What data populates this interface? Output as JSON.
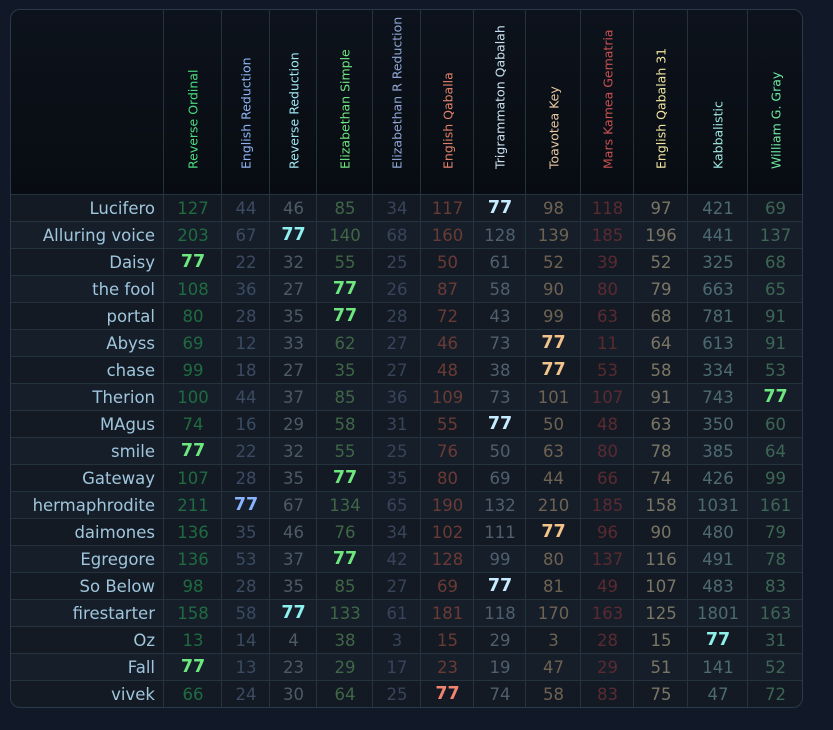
{
  "columns": [
    {
      "label": "Reverse Ordinal",
      "header_color": "#4ade80",
      "dim_color": "#1f6b3f",
      "hit_color": "#6ee77f"
    },
    {
      "label": "English Reduction",
      "header_color": "#8fb4f2",
      "dim_color": "#3b4b62",
      "hit_color": "#8ab4ff"
    },
    {
      "label": "Reverse Reduction",
      "header_color": "#9fe8f2",
      "dim_color": "#4d5b66",
      "hit_color": "#8ef0ef"
    },
    {
      "label": "Elizabethan Simple",
      "header_color": "#6ee77f",
      "dim_color": "#3f6646",
      "hit_color": "#6ee77f"
    },
    {
      "label": "Elizabethan R Reduction",
      "header_color": "#8fa7d6",
      "dim_color": "#38445a",
      "hit_color": "#8fa7d6"
    },
    {
      "label": "English Qaballa",
      "header_color": "#e0806a",
      "dim_color": "#6a3a34",
      "hit_color": "#f0846e"
    },
    {
      "label": "Trigrammaton Qabalah",
      "header_color": "#c8e0f0",
      "dim_color": "#4f5f6e",
      "hit_color": "#c8ecff"
    },
    {
      "label": "Toavotea Key",
      "header_color": "#e8c8a0",
      "dim_color": "#6e6252",
      "hit_color": "#f2c48c"
    },
    {
      "label": "Mars Kamea Gematria",
      "header_color": "#c85050",
      "dim_color": "#5a2a30",
      "hit_color": "#e05a5a"
    },
    {
      "label": "English Qabalah 31",
      "header_color": "#f0e6a0",
      "dim_color": "#7a7564",
      "hit_color": "#f0e6a0"
    },
    {
      "label": "Kabbalistic",
      "header_color": "#9ee8e0",
      "dim_color": "#4d6a70",
      "hit_color": "#8ef0e6"
    },
    {
      "label": "William G. Gray",
      "header_color": "#6ee7a0",
      "dim_color": "#3d6655",
      "hit_color": "#6ee77f"
    }
  ],
  "rows": [
    {
      "name": "Lucifero",
      "values": [
        "127",
        "44",
        "46",
        "85",
        "34",
        "117",
        "77",
        "98",
        "118",
        "97",
        "421",
        "69"
      ]
    },
    {
      "name": "Alluring voice",
      "values": [
        "203",
        "67",
        "77",
        "140",
        "68",
        "160",
        "128",
        "139",
        "185",
        "196",
        "441",
        "137"
      ]
    },
    {
      "name": "Daisy",
      "values": [
        "77",
        "22",
        "32",
        "55",
        "25",
        "50",
        "61",
        "52",
        "39",
        "52",
        "325",
        "68"
      ]
    },
    {
      "name": "the fool",
      "values": [
        "108",
        "36",
        "27",
        "77",
        "26",
        "87",
        "58",
        "90",
        "80",
        "79",
        "663",
        "65"
      ]
    },
    {
      "name": "portal",
      "values": [
        "80",
        "28",
        "35",
        "77",
        "28",
        "72",
        "43",
        "99",
        "63",
        "68",
        "781",
        "91"
      ]
    },
    {
      "name": "Abyss",
      "values": [
        "69",
        "12",
        "33",
        "62",
        "27",
        "46",
        "73",
        "77",
        "11",
        "64",
        "613",
        "91"
      ]
    },
    {
      "name": "chase",
      "values": [
        "99",
        "18",
        "27",
        "35",
        "27",
        "48",
        "38",
        "77",
        "53",
        "58",
        "334",
        "53"
      ]
    },
    {
      "name": "Therion",
      "values": [
        "100",
        "44",
        "37",
        "85",
        "36",
        "109",
        "73",
        "101",
        "107",
        "91",
        "743",
        "77"
      ]
    },
    {
      "name": "MAgus",
      "values": [
        "74",
        "16",
        "29",
        "58",
        "31",
        "55",
        "77",
        "50",
        "48",
        "63",
        "350",
        "60"
      ]
    },
    {
      "name": "smile",
      "values": [
        "77",
        "22",
        "32",
        "55",
        "25",
        "76",
        "50",
        "63",
        "80",
        "78",
        "385",
        "64"
      ]
    },
    {
      "name": "Gateway",
      "values": [
        "107",
        "28",
        "35",
        "77",
        "35",
        "80",
        "69",
        "44",
        "66",
        "74",
        "426",
        "99"
      ]
    },
    {
      "name": "hermaphrodite",
      "values": [
        "211",
        "77",
        "67",
        "134",
        "65",
        "190",
        "132",
        "210",
        "185",
        "158",
        "1031",
        "161"
      ]
    },
    {
      "name": "daimones",
      "values": [
        "136",
        "35",
        "46",
        "76",
        "34",
        "102",
        "111",
        "77",
        "96",
        "90",
        "480",
        "79"
      ]
    },
    {
      "name": "Egregore",
      "values": [
        "136",
        "53",
        "37",
        "77",
        "42",
        "128",
        "99",
        "80",
        "137",
        "116",
        "491",
        "78"
      ]
    },
    {
      "name": "So Below",
      "values": [
        "98",
        "28",
        "35",
        "85",
        "27",
        "69",
        "77",
        "81",
        "49",
        "107",
        "483",
        "83"
      ]
    },
    {
      "name": "firestarter",
      "values": [
        "158",
        "58",
        "77",
        "133",
        "61",
        "181",
        "118",
        "170",
        "163",
        "125",
        "1801",
        "163"
      ]
    },
    {
      "name": "Oz",
      "values": [
        "13",
        "14",
        "4",
        "38",
        "3",
        "15",
        "29",
        "3",
        "28",
        "15",
        "77",
        "31"
      ]
    },
    {
      "name": "Fall",
      "values": [
        "77",
        "13",
        "23",
        "29",
        "17",
        "23",
        "19",
        "47",
        "29",
        "51",
        "141",
        "52"
      ]
    },
    {
      "name": "vivek",
      "values": [
        "66",
        "24",
        "30",
        "64",
        "25",
        "77",
        "74",
        "58",
        "83",
        "75",
        "47",
        "72"
      ]
    }
  ],
  "highlight_value": "77"
}
